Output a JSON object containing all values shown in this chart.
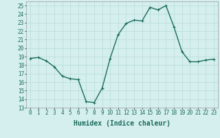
{
  "x": [
    0,
    1,
    2,
    3,
    4,
    5,
    6,
    7,
    8,
    9,
    10,
    11,
    12,
    13,
    14,
    15,
    16,
    17,
    18,
    19,
    20,
    21,
    22,
    23
  ],
  "y": [
    18.8,
    18.9,
    18.5,
    17.8,
    16.7,
    16.4,
    16.3,
    13.7,
    13.6,
    15.3,
    18.8,
    21.6,
    22.9,
    23.3,
    23.2,
    24.8,
    24.5,
    25.0,
    22.5,
    19.6,
    18.4,
    18.4,
    18.6,
    18.7
  ],
  "line_color": "#1a6b5a",
  "marker": "+",
  "markersize": 3,
  "linewidth": 1.0,
  "bg_color": "#d4efed",
  "grid_color": "#b8dbd8",
  "xlabel": "Humidex (Indice chaleur)",
  "xlabel_fontsize": 7,
  "tick_fontsize": 5.5,
  "ylim": [
    13,
    25.5
  ],
  "xlim": [
    -0.5,
    23.5
  ],
  "yticks": [
    13,
    14,
    15,
    16,
    17,
    18,
    19,
    20,
    21,
    22,
    23,
    24,
    25
  ],
  "xticks": [
    0,
    1,
    2,
    3,
    4,
    5,
    6,
    7,
    8,
    9,
    10,
    11,
    12,
    13,
    14,
    15,
    16,
    17,
    18,
    19,
    20,
    21,
    22,
    23
  ]
}
